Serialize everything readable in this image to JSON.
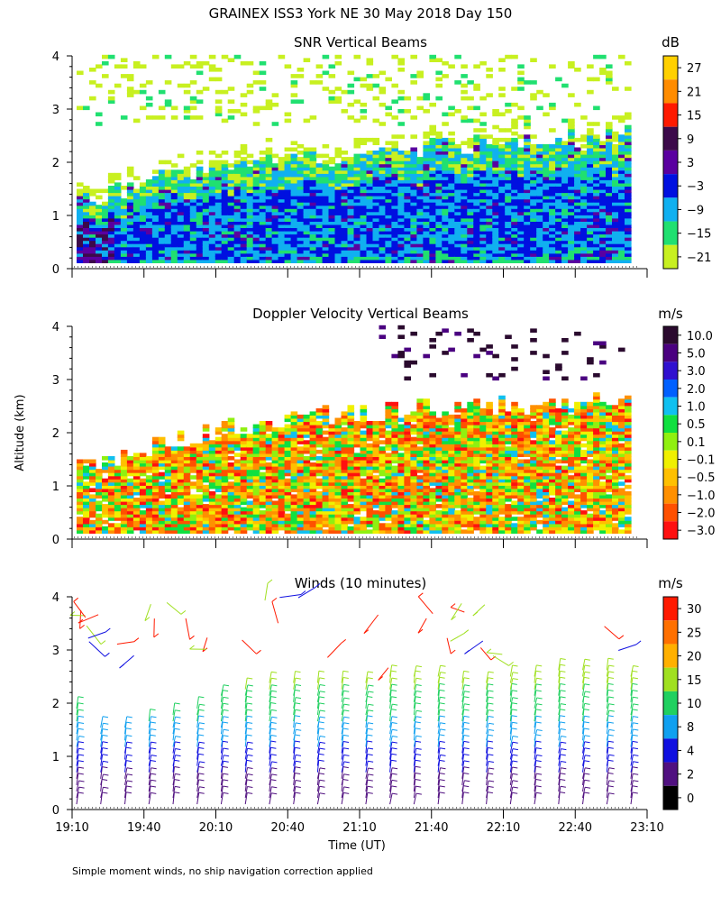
{
  "title": "GRAINEX ISS3 York NE  30 May 2018 Day 150",
  "shared": {
    "ylabel": "Altitude (km)",
    "xlabel": "Time (UT)",
    "x_ticks": [
      "19:10",
      "19:40",
      "20:10",
      "20:40",
      "21:10",
      "21:40",
      "22:10",
      "22:40",
      "23:10"
    ],
    "y_ticks": [
      "0",
      "1",
      "2",
      "3",
      "4"
    ],
    "ylim": [
      0,
      4
    ],
    "footnote": "Simple moment winds, no ship navigation correction applied"
  },
  "chart_data": [
    {
      "type": "heatmap",
      "title": "SNR Vertical Beams",
      "unit": "dB",
      "x_range": [
        "19:10",
        "23:10"
      ],
      "ylim": [
        0,
        4
      ],
      "colorbar": {
        "labels": [
          "27",
          "21",
          "15",
          "9",
          "3",
          "−3",
          "−9",
          "−15",
          "−21"
        ],
        "colors": [
          "#ffd000",
          "#ff8c00",
          "#ff1a00",
          "#3c0a4a",
          "#5a00a0",
          "#0010e0",
          "#10b0f0",
          "#20e070",
          "#c8f020"
        ]
      },
      "approx_top_km": [
        1.3,
        1.4,
        1.6,
        1.8,
        1.9,
        2.0,
        2.1,
        2.1,
        2.2,
        2.2,
        2.3,
        2.3,
        2.3,
        2.4,
        2.4,
        2.5
      ]
    },
    {
      "type": "heatmap",
      "title": "Doppler Velocity Vertical Beams",
      "unit": "m/s",
      "x_range": [
        "19:10",
        "23:10"
      ],
      "ylim": [
        0,
        4
      ],
      "colorbar": {
        "labels": [
          "10.0",
          "5.0",
          "3.0",
          "2.0",
          "1.0",
          "0.5",
          "0.1",
          "−0.1",
          "−0.5",
          "−1.0",
          "−2.0",
          "−3.0"
        ],
        "colors": [
          "#2a0a2e",
          "#4a0080",
          "#3010d0",
          "#0060ff",
          "#10c0f0",
          "#10e040",
          "#90f010",
          "#f0f000",
          "#ffc000",
          "#ff9000",
          "#ff5000",
          "#ff1010"
        ]
      },
      "approx_top_km": [
        1.3,
        1.4,
        1.7,
        1.9,
        2.1,
        2.2,
        2.3,
        2.3,
        2.4,
        2.4,
        2.4,
        2.5,
        2.5,
        2.5,
        2.6,
        2.6
      ]
    },
    {
      "type": "wind_barbs",
      "title": "Winds (10 minutes)",
      "unit": "m/s",
      "x_range": [
        "19:10",
        "23:10"
      ],
      "ylim": [
        0,
        4
      ],
      "colorbar": {
        "labels": [
          "30",
          "25",
          "20",
          "15",
          "10",
          "8",
          "4",
          "2",
          "0"
        ],
        "colors": [
          "#ff1a00",
          "#ff7000",
          "#ffb000",
          "#a0e020",
          "#20d060",
          "#10a0f0",
          "#1010e0",
          "#501080",
          "#000000"
        ]
      },
      "profile_tops_km": [
        2.0,
        1.6,
        1.6,
        1.7,
        1.8,
        2.0,
        2.2,
        2.3,
        2.4,
        2.4,
        2.5,
        2.5,
        2.5,
        2.6,
        2.6,
        2.6,
        2.5,
        2.5,
        2.6,
        2.6,
        2.7,
        2.7,
        2.7,
        2.6
      ]
    }
  ]
}
